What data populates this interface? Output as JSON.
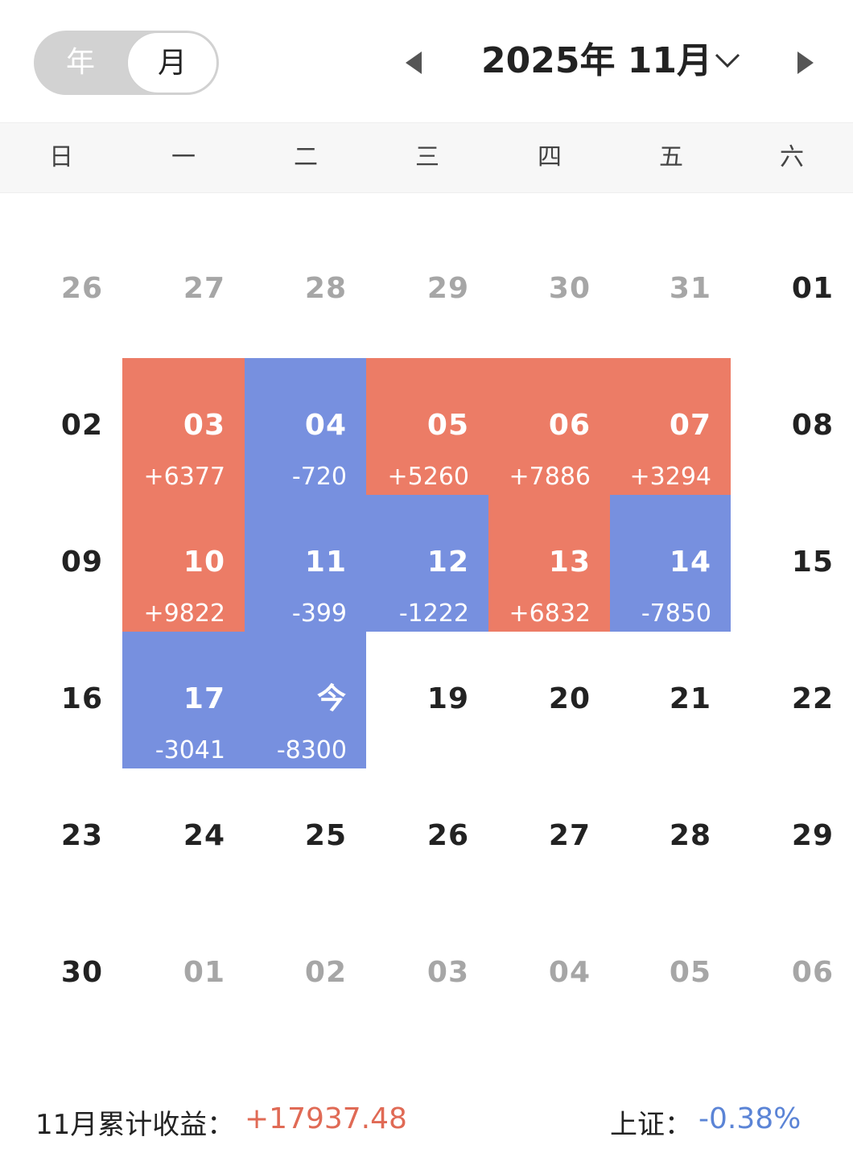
{
  "header": {
    "toggle": {
      "year_label": "年",
      "month_label": "月",
      "selected": "月"
    },
    "title": "2025年 11月",
    "prev_icon": "triangle-left-icon",
    "next_icon": "triangle-right-icon",
    "dropdown_icon": "chevron-down-icon"
  },
  "weekdays": [
    "日",
    "一",
    "二",
    "三",
    "四",
    "五",
    "六"
  ],
  "colors": {
    "gain": "#ec7c66",
    "loss": "#7790df",
    "muted_text": "#a6a6a6",
    "positive_text": "#e06a55",
    "negative_text": "#5b84d6"
  },
  "weeks": [
    [
      {
        "day": "26",
        "state": "muted"
      },
      {
        "day": "27",
        "state": "muted"
      },
      {
        "day": "28",
        "state": "muted"
      },
      {
        "day": "29",
        "state": "muted"
      },
      {
        "day": "30",
        "state": "muted"
      },
      {
        "day": "31",
        "state": "muted"
      },
      {
        "day": "01",
        "state": "normal"
      }
    ],
    [
      {
        "day": "02",
        "state": "normal"
      },
      {
        "day": "03",
        "state": "gain",
        "pnl": "+6377"
      },
      {
        "day": "04",
        "state": "loss",
        "pnl": "-720"
      },
      {
        "day": "05",
        "state": "gain",
        "pnl": "+5260"
      },
      {
        "day": "06",
        "state": "gain",
        "pnl": "+7886"
      },
      {
        "day": "07",
        "state": "gain",
        "pnl": "+3294"
      },
      {
        "day": "08",
        "state": "normal"
      }
    ],
    [
      {
        "day": "09",
        "state": "normal"
      },
      {
        "day": "10",
        "state": "gain",
        "pnl": "+9822"
      },
      {
        "day": "11",
        "state": "loss",
        "pnl": "-399"
      },
      {
        "day": "12",
        "state": "loss",
        "pnl": "-1222"
      },
      {
        "day": "13",
        "state": "gain",
        "pnl": "+6832"
      },
      {
        "day": "14",
        "state": "loss",
        "pnl": "-7850"
      },
      {
        "day": "15",
        "state": "normal"
      }
    ],
    [
      {
        "day": "16",
        "state": "normal"
      },
      {
        "day": "17",
        "state": "loss",
        "pnl": "-3041"
      },
      {
        "day": "今",
        "state": "loss",
        "pnl": "-8300"
      },
      {
        "day": "19",
        "state": "normal"
      },
      {
        "day": "20",
        "state": "normal"
      },
      {
        "day": "21",
        "state": "normal"
      },
      {
        "day": "22",
        "state": "normal"
      }
    ],
    [
      {
        "day": "23",
        "state": "normal"
      },
      {
        "day": "24",
        "state": "normal"
      },
      {
        "day": "25",
        "state": "normal"
      },
      {
        "day": "26",
        "state": "normal"
      },
      {
        "day": "27",
        "state": "normal"
      },
      {
        "day": "28",
        "state": "normal"
      },
      {
        "day": "29",
        "state": "normal"
      }
    ],
    [
      {
        "day": "30",
        "state": "normal"
      },
      {
        "day": "01",
        "state": "muted"
      },
      {
        "day": "02",
        "state": "muted"
      },
      {
        "day": "03",
        "state": "muted"
      },
      {
        "day": "04",
        "state": "muted"
      },
      {
        "day": "05",
        "state": "muted"
      },
      {
        "day": "06",
        "state": "muted"
      }
    ]
  ],
  "summary": {
    "month_label": "11月累计收益：",
    "month_value": "+17937.48",
    "index_label": "上证：",
    "index_value": "-0.38%"
  }
}
